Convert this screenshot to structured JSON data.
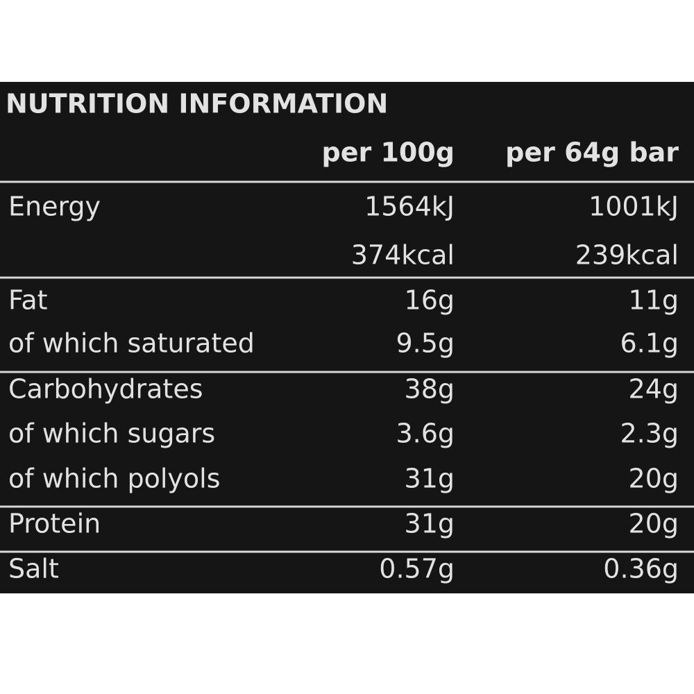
{
  "header": {
    "title": "NUTRITION INFORMATION"
  },
  "table": {
    "columns": [
      "per 100g",
      "per 64g bar"
    ],
    "sections": [
      [
        {
          "label": "Energy",
          "cells": [
            "1564kJ",
            "1001kJ"
          ]
        },
        {
          "cells": [
            "374kcal",
            "239kcal"
          ]
        }
      ],
      [
        {
          "label": "Fat",
          "cells": [
            "16g",
            "11g"
          ]
        },
        {
          "label": "of which saturated",
          "cells": [
            "9.5g",
            "6.1g"
          ]
        }
      ],
      [
        {
          "label": "Carbohydrates",
          "cells": [
            "38g",
            "24g"
          ]
        },
        {
          "label": "of which sugars",
          "cells": [
            "3.6g",
            "2.3g"
          ]
        },
        {
          "label": "of which polyols",
          "cells": [
            "31g",
            "20g"
          ]
        }
      ],
      [
        {
          "label": "Protein",
          "cells": [
            "31g",
            "20g"
          ]
        }
      ],
      [
        {
          "label": "Salt",
          "cells": [
            "0.57g",
            "0.36g"
          ]
        }
      ]
    ]
  }
}
